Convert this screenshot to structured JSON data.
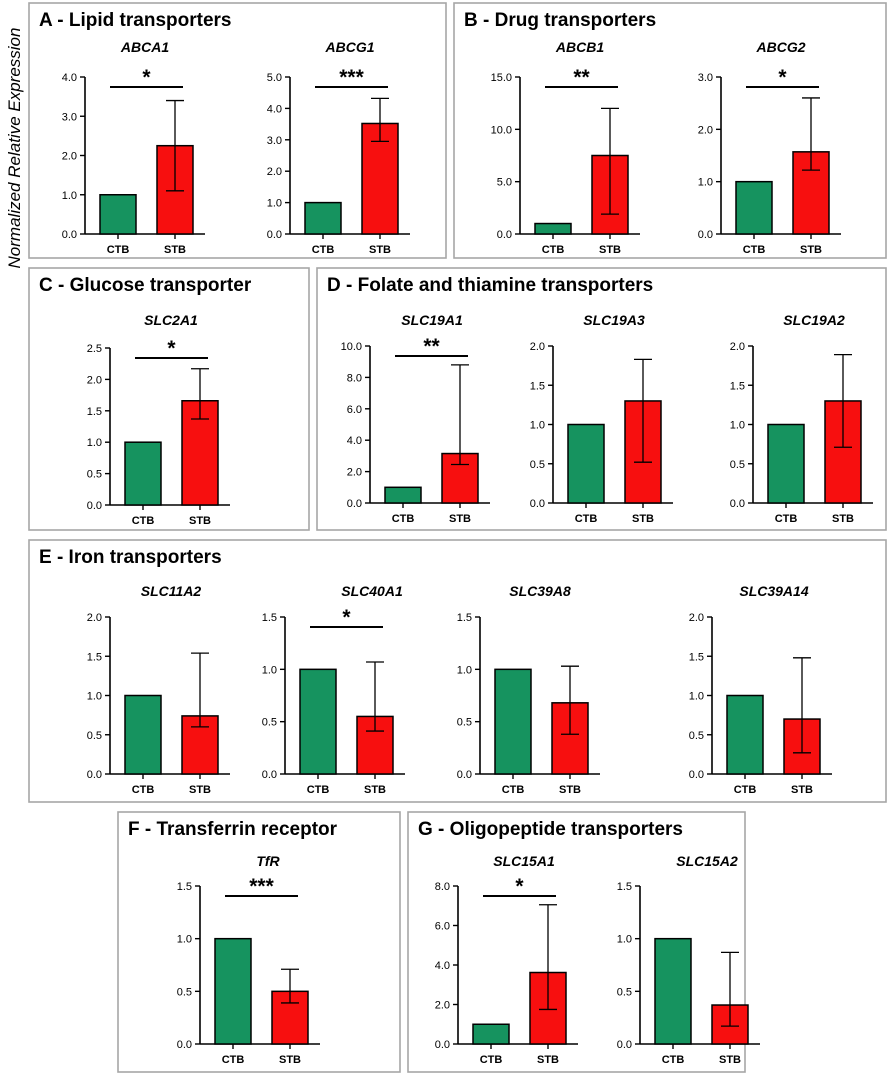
{
  "figure": {
    "y_axis_title": "Normalized Relative Expression",
    "colors": {
      "ctb": "#16935f",
      "stb": "#f70f0f",
      "panel_border": "#a6a6a6",
      "axis": "#000000"
    }
  },
  "panels": [
    {
      "id": "A",
      "title": "A - Lipid transporters"
    },
    {
      "id": "B",
      "title": "B - Drug transporters"
    },
    {
      "id": "C",
      "title": "C - Glucose transporter"
    },
    {
      "id": "D",
      "title": "D - Folate and thiamine transporters"
    },
    {
      "id": "E",
      "title": "E - Iron transporters"
    },
    {
      "id": "F",
      "title": "F - Transferrin receptor"
    },
    {
      "id": "G",
      "title": "G - Oligopeptide transporters"
    }
  ],
  "chart_data": [
    {
      "type": "bar",
      "panel": "A",
      "title": "ABCA1",
      "categories": [
        "CTB",
        "STB"
      ],
      "values": [
        1.0,
        2.25
      ],
      "error_low": [
        1.0,
        1.1
      ],
      "error_high": [
        1.0,
        3.4
      ],
      "ylim": [
        0,
        4
      ],
      "yticks": [
        "0.0",
        "1.0",
        "2.0",
        "3.0",
        "4.0"
      ],
      "significance": "*"
    },
    {
      "type": "bar",
      "panel": "A",
      "title": "ABCG1",
      "categories": [
        "CTB",
        "STB"
      ],
      "values": [
        1.0,
        3.52
      ],
      "error_low": [
        1.0,
        2.95
      ],
      "error_high": [
        1.0,
        4.32
      ],
      "ylim": [
        0,
        5
      ],
      "yticks": [
        "0.0",
        "1.0",
        "2.0",
        "3.0",
        "4.0",
        "5.0"
      ],
      "significance": "***"
    },
    {
      "type": "bar",
      "panel": "B",
      "title": "ABCB1",
      "categories": [
        "CTB",
        "STB"
      ],
      "values": [
        1.0,
        7.5
      ],
      "error_low": [
        1.0,
        1.9
      ],
      "error_high": [
        1.0,
        12.0
      ],
      "ylim": [
        0,
        15
      ],
      "yticks": [
        "0.0",
        "5.0",
        "10.0",
        "15.0"
      ],
      "significance": "**"
    },
    {
      "type": "bar",
      "panel": "B",
      "title": "ABCG2",
      "categories": [
        "CTB",
        "STB"
      ],
      "values": [
        1.0,
        1.57
      ],
      "error_low": [
        1.0,
        1.22
      ],
      "error_high": [
        1.0,
        2.6
      ],
      "ylim": [
        0,
        3
      ],
      "yticks": [
        "0.0",
        "1.0",
        "2.0",
        "3.0"
      ],
      "significance": "*"
    },
    {
      "type": "bar",
      "panel": "C",
      "title": "SLC2A1",
      "categories": [
        "CTB",
        "STB"
      ],
      "values": [
        1.0,
        1.66
      ],
      "error_low": [
        1.0,
        1.37
      ],
      "error_high": [
        1.0,
        2.17
      ],
      "ylim": [
        0,
        2.5
      ],
      "yticks": [
        "0.0",
        "0.5",
        "1.0",
        "1.5",
        "2.0",
        "2.5"
      ],
      "significance": "*"
    },
    {
      "type": "bar",
      "panel": "D",
      "title": "SLC19A1",
      "categories": [
        "CTB",
        "STB"
      ],
      "values": [
        1.0,
        3.15
      ],
      "error_low": [
        1.0,
        2.45
      ],
      "error_high": [
        1.0,
        8.8
      ],
      "ylim": [
        0,
        10
      ],
      "yticks": [
        "0.0",
        "2.0",
        "4.0",
        "6.0",
        "8.0",
        "10.0"
      ],
      "significance": "**"
    },
    {
      "type": "bar",
      "panel": "D",
      "title": "SLC19A3",
      "categories": [
        "CTB",
        "STB"
      ],
      "values": [
        1.0,
        1.3
      ],
      "error_low": [
        1.0,
        0.52
      ],
      "error_high": [
        1.0,
        1.83
      ],
      "ylim": [
        0,
        2
      ],
      "yticks": [
        "0.0",
        "0.5",
        "1.0",
        "1.5",
        "2.0"
      ],
      "significance": ""
    },
    {
      "type": "bar",
      "panel": "D",
      "title": "SLC19A2",
      "categories": [
        "CTB",
        "STB"
      ],
      "values": [
        1.0,
        1.3
      ],
      "error_low": [
        1.0,
        0.71
      ],
      "error_high": [
        1.0,
        1.89
      ],
      "ylim": [
        0,
        2
      ],
      "yticks": [
        "0.0",
        "0.5",
        "1.0",
        "1.5",
        "2.0"
      ],
      "significance": ""
    },
    {
      "type": "bar",
      "panel": "E",
      "title": "SLC11A2",
      "categories": [
        "CTB",
        "STB"
      ],
      "values": [
        1.0,
        0.74
      ],
      "error_low": [
        1.0,
        0.6
      ],
      "error_high": [
        1.0,
        1.54
      ],
      "ylim": [
        0,
        2
      ],
      "yticks": [
        "0.0",
        "0.5",
        "1.0",
        "1.5",
        "2.0"
      ],
      "significance": ""
    },
    {
      "type": "bar",
      "panel": "E",
      "title": "SLC40A1",
      "categories": [
        "CTB",
        "STB"
      ],
      "values": [
        1.0,
        0.55
      ],
      "error_low": [
        1.0,
        0.41
      ],
      "error_high": [
        1.0,
        1.07
      ],
      "ylim": [
        0,
        1.5
      ],
      "yticks": [
        "0.0",
        "0.5",
        "1.0",
        "1.5"
      ],
      "significance": "*"
    },
    {
      "type": "bar",
      "panel": "E",
      "title": "SLC39A8",
      "categories": [
        "CTB",
        "STB"
      ],
      "values": [
        1.0,
        0.68
      ],
      "error_low": [
        1.0,
        0.38
      ],
      "error_high": [
        1.0,
        1.03
      ],
      "ylim": [
        0,
        1.5
      ],
      "yticks": [
        "0.0",
        "0.5",
        "1.0",
        "1.5"
      ],
      "significance": ""
    },
    {
      "type": "bar",
      "panel": "E",
      "title": "SLC39A14",
      "categories": [
        "CTB",
        "STB"
      ],
      "values": [
        1.0,
        0.7
      ],
      "error_low": [
        1.0,
        0.27
      ],
      "error_high": [
        1.0,
        1.48
      ],
      "ylim": [
        0,
        2
      ],
      "yticks": [
        "0.0",
        "0.5",
        "1.0",
        "1.5",
        "2.0"
      ],
      "significance": ""
    },
    {
      "type": "bar",
      "panel": "F",
      "title": "TfR",
      "categories": [
        "CTB",
        "STB"
      ],
      "values": [
        1.0,
        0.5
      ],
      "error_low": [
        1.0,
        0.39
      ],
      "error_high": [
        1.0,
        0.71
      ],
      "ylim": [
        0,
        1.5
      ],
      "yticks": [
        "0.0",
        "0.5",
        "1.0",
        "1.5"
      ],
      "significance": "***"
    },
    {
      "type": "bar",
      "panel": "G",
      "title": "SLC15A1",
      "categories": [
        "CTB",
        "STB"
      ],
      "values": [
        1.0,
        3.62
      ],
      "error_low": [
        1.0,
        1.75
      ],
      "error_high": [
        1.0,
        7.05
      ],
      "ylim": [
        0,
        8
      ],
      "yticks": [
        "0.0",
        "2.0",
        "4.0",
        "6.0",
        "8.0"
      ],
      "significance": "*"
    },
    {
      "type": "bar",
      "panel": "G",
      "title": "SLC15A2",
      "categories": [
        "CTB",
        "STB"
      ],
      "values": [
        1.0,
        0.37
      ],
      "error_low": [
        1.0,
        0.17
      ],
      "error_high": [
        1.0,
        0.87
      ],
      "ylim": [
        0,
        1.5
      ],
      "yticks": [
        "0.0",
        "0.5",
        "1.0",
        "1.5"
      ],
      "significance": ""
    }
  ]
}
